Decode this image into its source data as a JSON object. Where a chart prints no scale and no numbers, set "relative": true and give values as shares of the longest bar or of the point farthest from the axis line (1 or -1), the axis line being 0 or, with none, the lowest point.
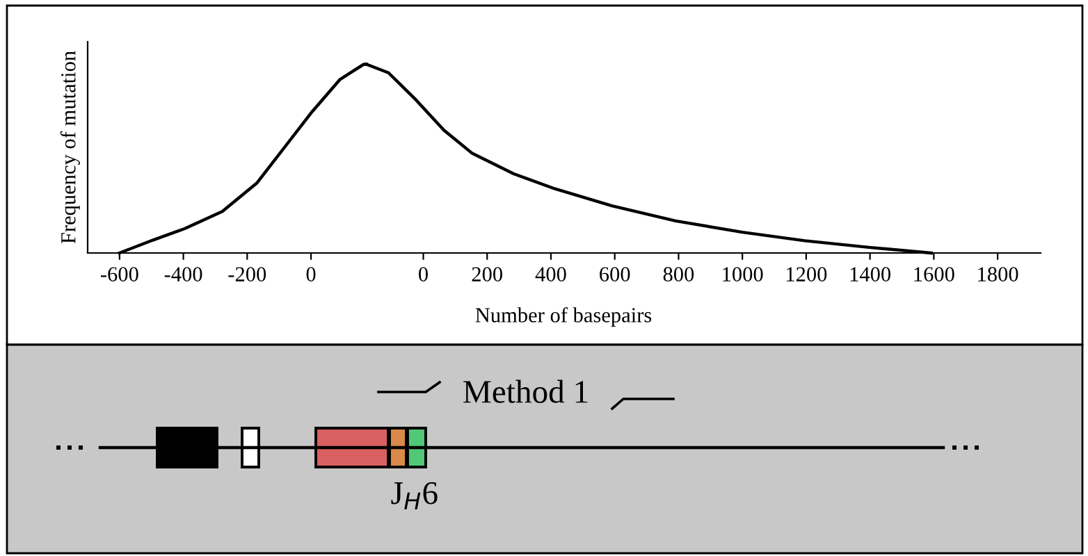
{
  "chart_data": [
    {
      "type": "line",
      "relative": true,
      "ylabel": "Frequency of mutation",
      "x": [
        -600,
        -496,
        -396,
        -278,
        -170,
        -83,
        4,
        91,
        165,
        174
      ],
      "series": [
        {
          "color": "#000000",
          "values": [
            0,
            0.068,
            0.129,
            0.22,
            0.37,
            0.56,
            0.75,
            0.92,
            1,
            1
          ]
        }
      ],
      "xlim": [
        -700,
        174
      ],
      "xticks": [
        -600,
        -400,
        -200,
        0
      ],
      "grid": false,
      "legend": false,
      "marker": "none",
      "line_style": "solid",
      "annotations": [
        "Method 1",
        "J$_{H}$6"
      ]
    },
    {
      "type": "line",
      "relative": true,
      "xlabel": "Number of basepairs",
      "x": [
        -178,
        -109,
        -22,
        65,
        152,
        283,
        413,
        591,
        791,
        1000,
        1196,
        1396,
        1592
      ],
      "series": [
        {
          "color": "#000000",
          "values": [
            1,
            0.955,
            0.81,
            0.65,
            0.53,
            0.42,
            0.34,
            0.25,
            0.17,
            0.11,
            0.065,
            0.03,
            0
          ]
        }
      ],
      "xlim": [
        -178,
        1935
      ],
      "xticks": [
        0,
        200,
        400,
        600,
        800,
        1000,
        1200,
        1400,
        1600,
        1800
      ],
      "grid": false,
      "legend": false,
      "marker": "none",
      "line_style": "solid"
    }
  ]
}
